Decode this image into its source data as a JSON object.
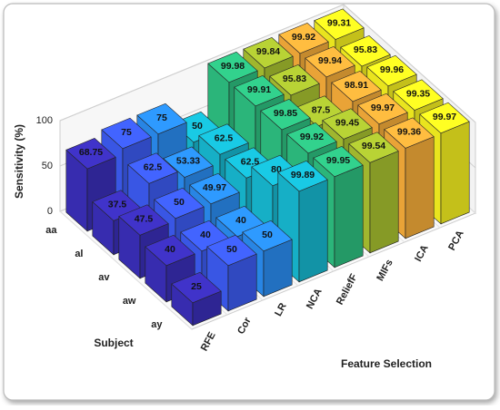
{
  "chart_data": {
    "type": "bar3d",
    "xlabel": "Feature Selection",
    "ylabel": "Subject",
    "zlabel": "Sensitivity (%)",
    "categories": [
      "aa",
      "al",
      "av",
      "aw",
      "ay"
    ],
    "series": [
      {
        "name": "RFE",
        "color": "#3a2eb8",
        "values": [
          68.75,
          37.5,
          47.5,
          40,
          25
        ]
      },
      {
        "name": "Cor",
        "color": "#3c5bf0",
        "values": [
          75,
          62.5,
          50,
          40,
          50
        ]
      },
      {
        "name": "LR",
        "color": "#2a8cf0",
        "values": [
          75,
          53.33,
          49.97,
          40,
          50
        ]
      },
      {
        "name": "NCA",
        "color": "#17b8d0",
        "values": [
          50,
          62.5,
          62.5,
          80,
          99.89
        ]
      },
      {
        "name": "ReliefF",
        "color": "#2dbf80",
        "values": [
          99.98,
          99.91,
          99.85,
          99.92,
          99.95
        ]
      },
      {
        "name": "MIFs",
        "color": "#a8c030",
        "values": [
          99.84,
          95.83,
          87.5,
          99.45,
          99.54
        ]
      },
      {
        "name": "ICA",
        "color": "#f5ac3a",
        "values": [
          99.92,
          99.94,
          98.91,
          99.97,
          99.36
        ]
      },
      {
        "name": "PCA",
        "color": "#f5f020",
        "values": [
          99.31,
          95.83,
          99.96,
          99.35,
          99.97
        ]
      }
    ],
    "zlim": [
      0,
      100
    ],
    "zticks": [
      0,
      50,
      100
    ],
    "grid": true
  }
}
